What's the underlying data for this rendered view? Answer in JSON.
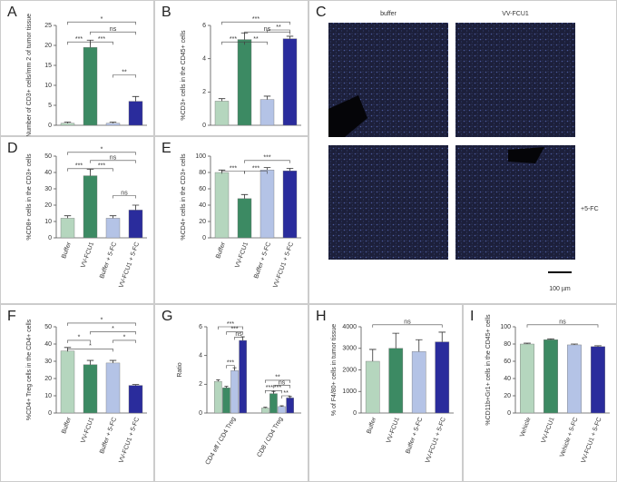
{
  "chart_data": [
    {
      "type": "bar",
      "panel": "A",
      "y_label": "Number of CD3+ cells/mm 2 of tumor tissue",
      "categories": [
        null,
        null,
        null,
        null
      ],
      "values": [
        0.5,
        19.5,
        0.5,
        6
      ],
      "errors": [
        0.3,
        1.8,
        0.3,
        1.2
      ],
      "colors": [
        "#b5d6be",
        "#3c8a63",
        "#b4c3e6",
        "#2a2c9c"
      ],
      "ylim": [
        0,
        25
      ],
      "yticks": [
        0,
        5,
        10,
        15,
        20,
        25
      ],
      "significance": [
        "*",
        "ns",
        "***",
        "***",
        "**"
      ]
    },
    {
      "type": "bar",
      "panel": "B",
      "y_label": "%CD3+ cells in the CD45+ cells",
      "categories": [
        null,
        null,
        null,
        null
      ],
      "values": [
        1.45,
        5.15,
        1.55,
        5.2
      ],
      "errors": [
        0.15,
        0.4,
        0.2,
        0.15
      ],
      "colors": [
        "#b5d6be",
        "#3c8a63",
        "#b4c3e6",
        "#2a2c9c"
      ],
      "ylim": [
        0,
        6
      ],
      "yticks": [
        0,
        2,
        4,
        6
      ],
      "significance": [
        "***",
        "ns",
        "***",
        "**",
        "**"
      ]
    },
    {
      "type": "image",
      "panel": "C",
      "column_labels": [
        "buffer",
        "VV-FCU1"
      ],
      "row_label": "+5-FC",
      "scale_bar": "100 µm"
    },
    {
      "type": "bar",
      "panel": "D",
      "y_label": "%CD8+ cells in the CD3+ cells",
      "categories": [
        "Buffer",
        "VV-FCU1",
        "Buffer + 5-FC",
        "VV-FCU1 + 5-FC"
      ],
      "values": [
        12,
        38,
        12,
        17
      ],
      "errors": [
        1.5,
        4,
        1.5,
        3
      ],
      "colors": [
        "#b5d6be",
        "#3c8a63",
        "#b4c3e6",
        "#2a2c9c"
      ],
      "ylim": [
        0,
        50
      ],
      "yticks": [
        0,
        10,
        20,
        30,
        40,
        50
      ],
      "significance": [
        "*",
        "ns",
        "***",
        "***",
        "ns"
      ]
    },
    {
      "type": "bar",
      "panel": "E",
      "y_label": "%CD4+ cells in the CD3+ cells",
      "categories": [
        "Buffer",
        "VV-FCU1",
        "Buffer + 5-FC",
        "VV-FCU1 + 5-FC"
      ],
      "values": [
        80,
        48,
        83,
        82
      ],
      "errors": [
        3,
        5,
        3,
        3
      ],
      "colors": [
        "#b5d6be",
        "#3c8a63",
        "#b4c3e6",
        "#2a2c9c"
      ],
      "ylim": [
        0,
        100
      ],
      "yticks": [
        0,
        20,
        40,
        60,
        80,
        100
      ],
      "significance": [
        "***",
        "***",
        "***"
      ]
    },
    {
      "type": "bar",
      "panel": "F",
      "y_label": "%CD4+ Treg cells in the CD4+ cells",
      "categories": [
        "Buffer",
        "VV-FCU1",
        "Buffer + 5-FC",
        "VV-FCU1 + 5-FC"
      ],
      "values": [
        36,
        28,
        29,
        16
      ],
      "errors": [
        2,
        2.5,
        1.5,
        0.5
      ],
      "colors": [
        "#b5d6be",
        "#3c8a63",
        "#b4c3e6",
        "#2a2c9c"
      ],
      "ylim": [
        0,
        50
      ],
      "yticks": [
        0,
        10,
        20,
        30,
        40,
        50
      ],
      "significance": [
        "*",
        "*",
        "*",
        "*",
        "*"
      ]
    },
    {
      "type": "grouped_bar",
      "panel": "G",
      "y_label": "Ratio",
      "categories": [
        "CD4 eff / CD4 Treg",
        "CD8 / CD4 Treg"
      ],
      "series": [
        {
          "color": "#b5d6be",
          "values": [
            2.2,
            0.35
          ],
          "errors": [
            0.1,
            0.05
          ]
        },
        {
          "color": "#3c8a63",
          "values": [
            1.75,
            1.35
          ],
          "errors": [
            0.1,
            0.15
          ]
        },
        {
          "color": "#b4c3e6",
          "values": [
            2.95,
            0.45
          ],
          "errors": [
            0.2,
            0.05
          ]
        },
        {
          "color": "#2a2c9c",
          "values": [
            5.05,
            1.05
          ],
          "errors": [
            0.25,
            0.1
          ]
        }
      ],
      "ylim": [
        0,
        6
      ],
      "yticks": [
        0,
        2,
        4,
        6
      ],
      "significance": [
        "***",
        "***",
        "ns",
        "***",
        "**",
        "ns",
        "***",
        "***",
        "**"
      ]
    },
    {
      "type": "bar",
      "panel": "H",
      "y_label": "% of F4/80+ cells in tumor tissue",
      "categories": [
        "Buffer",
        "VV-FCU1",
        "Buffer + 5-FC",
        "VV-FCU1 + 5-FC"
      ],
      "values": [
        2400,
        3000,
        2850,
        3300
      ],
      "errors": [
        550,
        700,
        550,
        450
      ],
      "colors": [
        "#b5d6be",
        "#3c8a63",
        "#b4c3e6",
        "#2a2c9c"
      ],
      "ylim": [
        0,
        4000
      ],
      "yticks": [
        0,
        1000,
        2000,
        3000,
        4000
      ],
      "significance": [
        "ns"
      ]
    },
    {
      "type": "bar",
      "panel": "I",
      "y_label": "%CD11b+Gr1+ cells in the CD45+ cells",
      "categories": [
        "Vehicle",
        "VV-FCU1",
        "Vehicle + 5-FC",
        "VV-FCU1 + 5-FC"
      ],
      "values": [
        80,
        85,
        79,
        77
      ],
      "errors": [
        1,
        1,
        1,
        1
      ],
      "colors": [
        "#b5d6be",
        "#3c8a63",
        "#b4c3e6",
        "#2a2c9c"
      ],
      "ylim": [
        0,
        100
      ],
      "yticks": [
        0,
        20,
        40,
        60,
        80,
        100
      ],
      "significance": [
        "ns"
      ]
    }
  ]
}
